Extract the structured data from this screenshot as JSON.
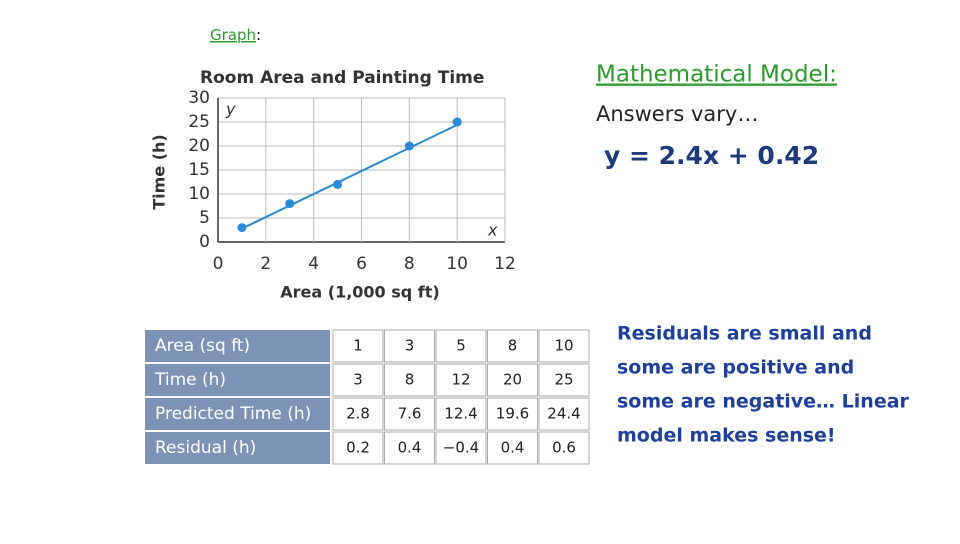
{
  "heading": {
    "label": "Graph",
    "colon": ":"
  },
  "chart_data": {
    "type": "scatter",
    "title": "Room Area and Painting Time",
    "x_label": "Area (1,000 sq ft)",
    "y_label": "Time (h)",
    "x_axis_letter": "x",
    "y_axis_letter": "y",
    "series": [
      {
        "color": "#2a8ad4",
        "x": [
          1,
          3,
          5,
          8,
          10
        ],
        "values": [
          3,
          8,
          12,
          20,
          25
        ]
      }
    ],
    "fit": {
      "color": "#2a8ad4",
      "x": [
        1,
        10
      ],
      "values": [
        2.8,
        24.4
      ]
    },
    "xlim": [
      0,
      12
    ],
    "xticks": [
      0,
      2,
      4,
      6,
      8,
      10,
      12
    ],
    "ylim": [
      0,
      30
    ],
    "yticks": [
      0,
      5,
      10,
      15,
      20,
      25,
      30
    ],
    "grid": true
  },
  "table": {
    "rows": [
      [
        "Area (sq ft)",
        "1",
        "3",
        "5",
        "8",
        "10"
      ],
      [
        "Time (h)",
        "3",
        "8",
        "12",
        "20",
        "25"
      ],
      [
        "Predicted Time (h)",
        "2.8",
        "7.6",
        "12.4",
        "19.6",
        "24.4"
      ],
      [
        "Residual (h)",
        "0.2",
        "0.4",
        "−0.4",
        "0.4",
        "0.6"
      ]
    ]
  },
  "model": {
    "title": "Mathematical Model:",
    "note": "Answers vary…",
    "equation": "y = 2.4x + 0.42"
  },
  "conclusion": [
    "Residuals are small and",
    "some are positive and",
    "some are negative… Linear",
    "model makes sense!"
  ]
}
